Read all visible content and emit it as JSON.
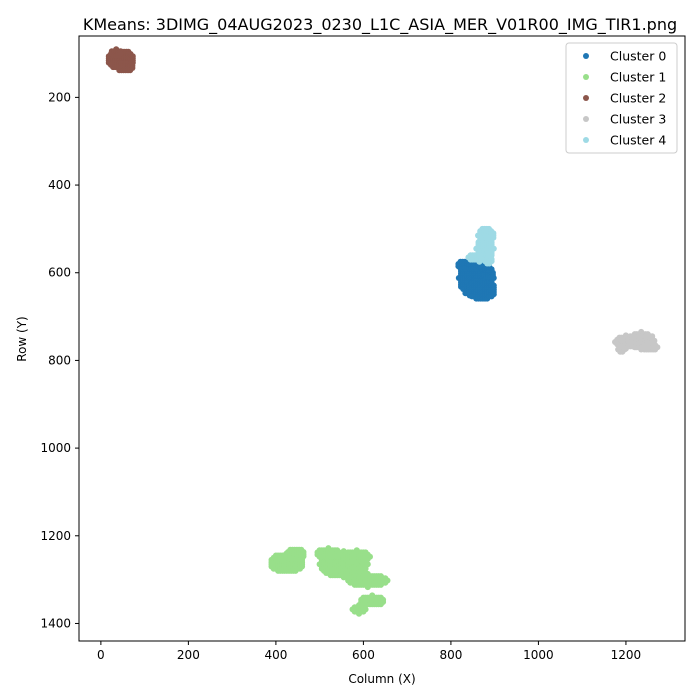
{
  "chart_data": {
    "type": "scatter",
    "title": "KMeans: 3DIMG_04AUG2023_0230_L1C_ASIA_MER_V01R00_IMG_TIR1.png",
    "xlabel": "Column (X)",
    "ylabel": "Row (Y)",
    "xlim": [
      -50,
      1335
    ],
    "ylim": [
      1440,
      60
    ],
    "y_inverted": true,
    "xticks": [
      0,
      200,
      400,
      600,
      800,
      1000,
      1200
    ],
    "yticks": [
      200,
      400,
      600,
      800,
      1000,
      1200,
      1400
    ],
    "grid": false,
    "legend_position": "top-right",
    "series": [
      {
        "name": "Cluster 0",
        "color": "#1f77b4",
        "regions": [
          {
            "center": [
              858,
              612
            ],
            "radius": [
              40,
              45
            ]
          },
          {
            "center": [
              870,
              638
            ],
            "radius": [
              32,
              24
            ]
          },
          {
            "center": [
              840,
              582
            ],
            "radius": [
              28,
              12
            ]
          },
          {
            "center": [
              888,
              605
            ],
            "radius": [
              12,
              10
            ]
          }
        ]
      },
      {
        "name": "Cluster 1",
        "color": "#98df8a",
        "regions": [
          {
            "center": [
              425,
              1262
            ],
            "radius": [
              40,
              22
            ]
          },
          {
            "center": [
              445,
              1242
            ],
            "radius": [
              22,
              15
            ]
          },
          {
            "center": [
              555,
              1265
            ],
            "radius": [
              55,
              30
            ]
          },
          {
            "center": [
              520,
              1240
            ],
            "radius": [
              30,
              12
            ]
          },
          {
            "center": [
              585,
              1248
            ],
            "radius": [
              30,
              15
            ]
          },
          {
            "center": [
              610,
              1302
            ],
            "radius": [
              45,
              15
            ]
          },
          {
            "center": [
              620,
              1348
            ],
            "radius": [
              30,
              12
            ]
          },
          {
            "center": [
              590,
              1368
            ],
            "radius": [
              15,
              10
            ]
          }
        ]
      },
      {
        "name": "Cluster 2",
        "color": "#8c564b",
        "regions": [
          {
            "center": [
              45,
              113
            ],
            "radius": [
              32,
              22
            ]
          },
          {
            "center": [
              55,
              130
            ],
            "radius": [
              18,
              12
            ]
          },
          {
            "center": [
              35,
              98
            ],
            "radius": [
              15,
              8
            ]
          }
        ]
      },
      {
        "name": "Cluster 3",
        "color": "#c7c7c7",
        "regions": [
          {
            "center": [
              1200,
              758
            ],
            "radius": [
              25,
              15
            ]
          },
          {
            "center": [
              1235,
              755
            ],
            "radius": [
              30,
              20
            ]
          },
          {
            "center": [
              1255,
              770
            ],
            "radius": [
              18,
              10
            ]
          },
          {
            "center": [
              1190,
              775
            ],
            "radius": [
              8,
              10
            ]
          }
        ]
      },
      {
        "name": "Cluster 4",
        "color": "#9edae5",
        "regions": [
          {
            "center": [
              880,
              515
            ],
            "radius": [
              18,
              20
            ]
          },
          {
            "center": [
              878,
              545
            ],
            "radius": [
              20,
              25
            ]
          },
          {
            "center": [
              865,
              565
            ],
            "radius": [
              25,
              10
            ]
          },
          {
            "center": [
              885,
              572
            ],
            "radius": [
              12,
              8
            ]
          }
        ]
      }
    ]
  }
}
